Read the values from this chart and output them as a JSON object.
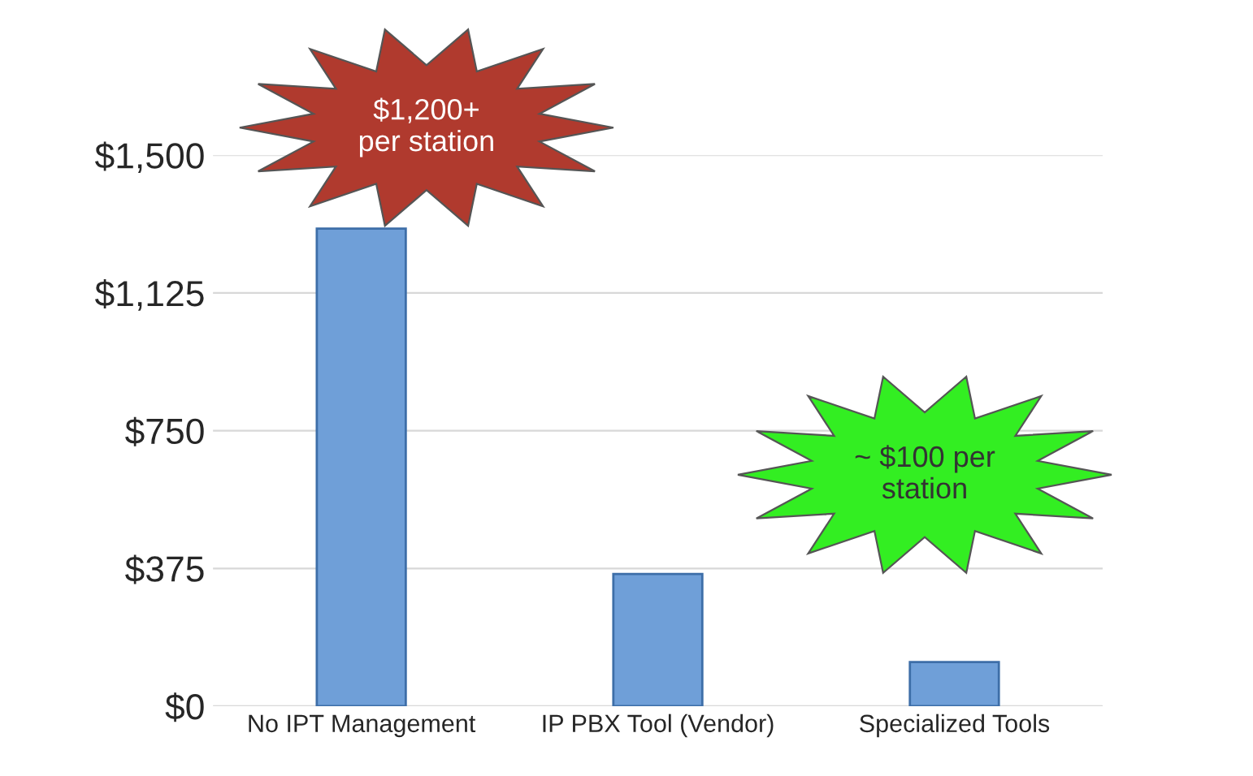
{
  "chart_data": {
    "type": "bar",
    "categories": [
      "No IPT Management",
      "IP PBX Tool (Vendor)",
      "Specialized Tools"
    ],
    "values": [
      1300,
      360,
      120
    ],
    "color": "#6f9fd8",
    "ylim": [
      0,
      1500
    ],
    "yticks": [
      {
        "value": 0,
        "label": "$0"
      },
      {
        "value": 375,
        "label": "$375"
      },
      {
        "value": 750,
        "label": "$750"
      },
      {
        "value": 1125,
        "label": "$1,125"
      },
      {
        "value": 1500,
        "label": "$1,500"
      }
    ],
    "grid": "y",
    "annotations": [
      "$1,200+\nper station",
      "~ $100 per\nstation"
    ]
  }
}
